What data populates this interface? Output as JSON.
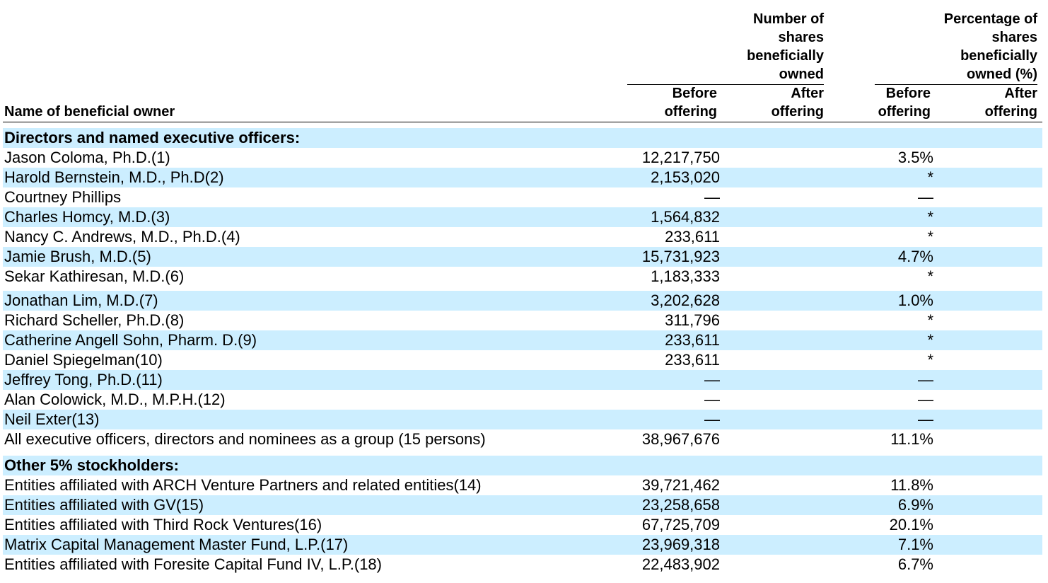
{
  "header": {
    "group_shares": [
      "Number of",
      "shares",
      "beneficially",
      "owned"
    ],
    "group_pct": [
      "Percentage of",
      "shares",
      "beneficially",
      "owned (%)"
    ],
    "name_col": "Name of beneficial owner",
    "before_label": [
      "Before",
      "offering"
    ],
    "after_label": [
      "After",
      "offering"
    ]
  },
  "rows": [
    {
      "name": "Directors and named executive officers:",
      "section": true,
      "shaded": true
    },
    {
      "name": "Jason Coloma, Ph.D.(1)",
      "before": "12,217,750",
      "pct": "3.5%",
      "shaded": false
    },
    {
      "name": "Harold Bernstein, M.D., Ph.D(2)",
      "before": "2,153,020",
      "pct": "*",
      "shaded": true
    },
    {
      "name": "Courtney Phillips",
      "before": "—",
      "pct": "—",
      "shaded": false
    },
    {
      "name": "Charles Homcy, M.D.(3)",
      "before": "1,564,832",
      "pct": "*",
      "shaded": true
    },
    {
      "name": "Nancy C. Andrews, M.D., Ph.D.(4)",
      "before": "233,611",
      "pct": "*",
      "shaded": false
    },
    {
      "name": "Jamie Brush, M.D.(5)",
      "before": "15,731,923",
      "pct": "4.7%",
      "shaded": true
    },
    {
      "name": "Sekar Kathiresan, M.D.(6)",
      "before": "1,183,333",
      "pct": "*",
      "shaded": false
    },
    {
      "name": "Jonathan Lim, M.D.(7)",
      "before": "3,202,628",
      "pct": "1.0%",
      "shaded": true
    },
    {
      "name": "Richard Scheller, Ph.D.(8)",
      "before": "311,796",
      "pct": "*",
      "shaded": false
    },
    {
      "name": "Catherine Angell Sohn, Pharm. D.(9)",
      "before": "233,611",
      "pct": "*",
      "shaded": true
    },
    {
      "name": "Daniel Spiegelman(10)",
      "before": "233,611",
      "pct": "*",
      "shaded": false
    },
    {
      "name": "Jeffrey Tong, Ph.D.(11)",
      "before": "—",
      "pct": "—",
      "shaded": true
    },
    {
      "name": "Alan Colowick, M.D., M.P.H.(12)",
      "before": "—",
      "pct": "—",
      "shaded": false
    },
    {
      "name": "Neil Exter(13)",
      "before": "—",
      "pct": "—",
      "shaded": true
    },
    {
      "name": "All executive officers, directors and nominees as a group (15 persons)",
      "before": "38,967,676",
      "pct": "11.1%",
      "shaded": false
    },
    {
      "name": "Other 5% stockholders:",
      "section": true,
      "shaded": true
    },
    {
      "name": "Entities affiliated with ARCH Venture Partners and related entities(14)",
      "before": "39,721,462",
      "pct": "11.8%",
      "shaded": false
    },
    {
      "name": "Entities affiliated with GV(15)",
      "before": "23,258,658",
      "pct": "6.9%",
      "shaded": true
    },
    {
      "name": "Entities affiliated with Third Rock Ventures(16)",
      "before": "67,725,709",
      "pct": "20.1%",
      "shaded": false
    },
    {
      "name": "Matrix Capital Management Master Fund, L.P.(17)",
      "before": "23,969,318",
      "pct": "7.1%",
      "shaded": true
    },
    {
      "name": "Entities affiliated with Foresite Capital Fund IV, L.P.(18)",
      "before": "22,483,902",
      "pct": "6.7%",
      "shaded": false
    }
  ]
}
